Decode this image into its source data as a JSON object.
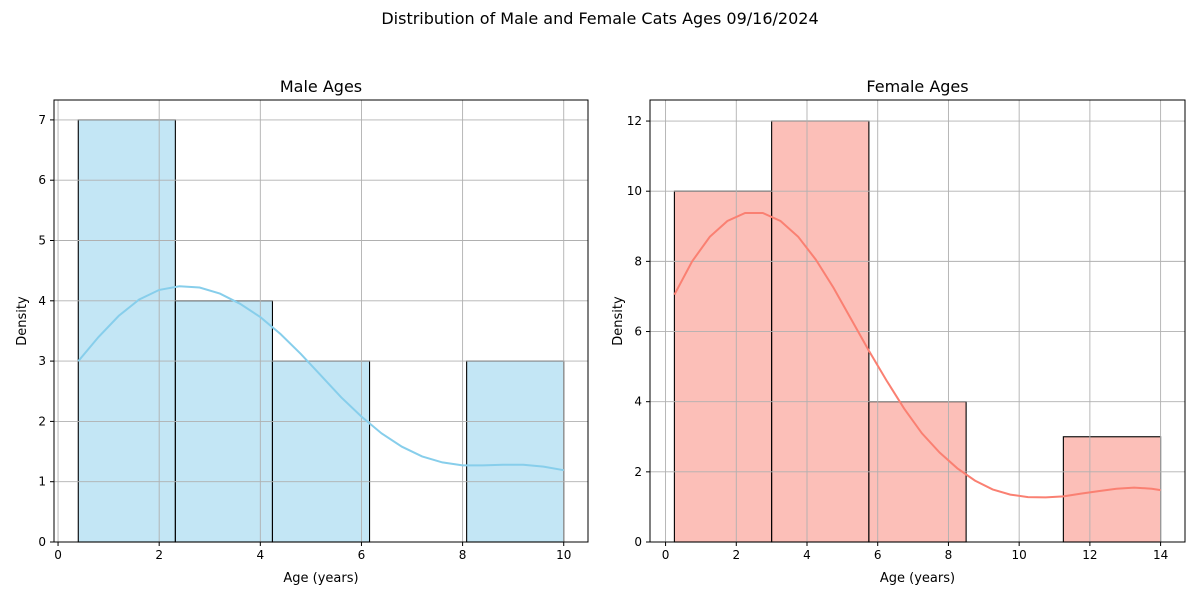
{
  "figure": {
    "suptitle": "Distribution of Male and Female Cats Ages 09/16/2024"
  },
  "chart_data": [
    {
      "type": "bar",
      "subtype": "histogram-with-kde",
      "title": "Male Ages",
      "xlabel": "Age (years)",
      "ylabel": "Density",
      "xlim": [
        -0.08,
        10.48
      ],
      "ylim": [
        0,
        7.33
      ],
      "xticks": [
        0,
        2,
        4,
        6,
        8,
        10
      ],
      "yticks": [
        0,
        1,
        2,
        3,
        4,
        5,
        6,
        7
      ],
      "grid": true,
      "color": "#87CEEB",
      "bins": [
        {
          "x0": 0.4,
          "x1": 2.32,
          "value": 7
        },
        {
          "x0": 2.32,
          "x1": 4.24,
          "value": 4
        },
        {
          "x0": 4.24,
          "x1": 6.16,
          "value": 3
        },
        {
          "x0": 6.16,
          "x1": 8.08,
          "value": 0
        },
        {
          "x0": 8.08,
          "x1": 10.0,
          "value": 3
        }
      ],
      "kde": {
        "x": [
          0.4,
          0.8,
          1.2,
          1.6,
          2.0,
          2.4,
          2.8,
          3.2,
          3.6,
          4.0,
          4.4,
          4.8,
          5.2,
          5.6,
          6.0,
          6.4,
          6.8,
          7.2,
          7.6,
          8.0,
          8.4,
          8.8,
          9.2,
          9.6,
          10.0
        ],
        "y": [
          3.0,
          3.4,
          3.75,
          4.02,
          4.18,
          4.24,
          4.22,
          4.12,
          3.95,
          3.73,
          3.45,
          3.12,
          2.76,
          2.4,
          2.08,
          1.8,
          1.58,
          1.42,
          1.32,
          1.27,
          1.27,
          1.28,
          1.28,
          1.25,
          1.19
        ]
      }
    },
    {
      "type": "bar",
      "subtype": "histogram-with-kde",
      "title": "Female Ages",
      "xlabel": "Age (years)",
      "ylabel": "Density",
      "xlim": [
        -0.44,
        14.69
      ],
      "ylim": [
        0,
        12.6
      ],
      "xticks": [
        0,
        2,
        4,
        6,
        8,
        10,
        12,
        14
      ],
      "yticks": [
        0,
        2,
        4,
        6,
        8,
        10,
        12
      ],
      "grid": true,
      "color": "#FA8072",
      "bins": [
        {
          "x0": 0.25,
          "x1": 3.0,
          "value": 10
        },
        {
          "x0": 3.0,
          "x1": 5.75,
          "value": 12
        },
        {
          "x0": 5.75,
          "x1": 8.5,
          "value": 4
        },
        {
          "x0": 8.5,
          "x1": 11.25,
          "value": 0
        },
        {
          "x0": 11.25,
          "x1": 14.0,
          "value": 3
        }
      ],
      "kde": {
        "x": [
          0.25,
          0.75,
          1.25,
          1.75,
          2.25,
          2.75,
          3.25,
          3.75,
          4.25,
          4.75,
          5.25,
          5.75,
          6.25,
          6.75,
          7.25,
          7.75,
          8.25,
          8.75,
          9.25,
          9.75,
          10.25,
          10.75,
          11.25,
          11.75,
          12.25,
          12.75,
          13.25,
          13.75,
          14.0
        ],
        "y": [
          7.05,
          8.0,
          8.7,
          9.15,
          9.38,
          9.38,
          9.15,
          8.7,
          8.05,
          7.25,
          6.35,
          5.45,
          4.6,
          3.8,
          3.1,
          2.55,
          2.1,
          1.75,
          1.5,
          1.35,
          1.28,
          1.27,
          1.3,
          1.38,
          1.45,
          1.52,
          1.55,
          1.52,
          1.48
        ]
      }
    }
  ]
}
